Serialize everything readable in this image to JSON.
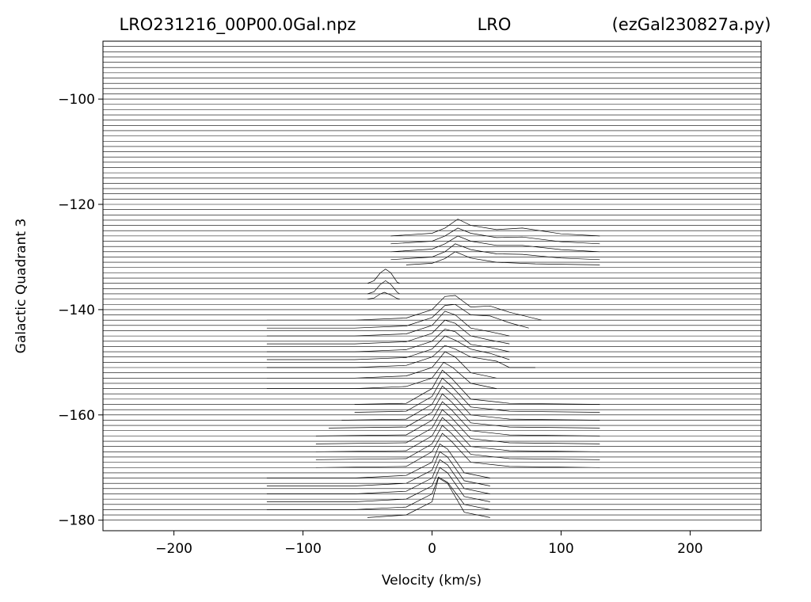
{
  "chart_data": {
    "type": "ridgeline",
    "title_left": "LRO231216_00P00.0Gal.npz",
    "title_center": "LRO",
    "title_right": "(ezGal230827a.py)",
    "xlabel": "Velocity (km/s)",
    "ylabel": "Galactic Quadrant 3",
    "xlim": [
      -255,
      255
    ],
    "ylim": [
      -182,
      -89
    ],
    "xticks": [
      {
        "value": -200,
        "label": "−200"
      },
      {
        "value": -100,
        "label": "−100"
      },
      0,
      100,
      200
    ],
    "yticks": [
      {
        "value": -180,
        "label": "−180"
      },
      {
        "value": -160,
        "label": "−160"
      },
      {
        "value": -140,
        "label": "−140"
      },
      {
        "value": -120,
        "label": "−120"
      },
      {
        "value": -100,
        "label": "−100"
      }
    ],
    "color": "#000000",
    "rows": [
      -90,
      -91,
      -92,
      -93,
      -94,
      -95,
      -96,
      -97,
      -98,
      -99,
      -100,
      -101,
      -102,
      -103,
      -104,
      -105,
      -106,
      -107,
      -108,
      -109,
      -110,
      -111,
      -112,
      -113,
      -114,
      -115,
      -116,
      -117,
      -118,
      -119,
      -120,
      -121,
      -122,
      -123,
      -124,
      -125,
      -126,
      -127,
      -128,
      -129,
      -130,
      -131,
      -132,
      -133,
      -134,
      -135,
      -136,
      -137,
      -138,
      -139,
      -140,
      -141,
      -142,
      -143,
      -144,
      -145,
      -146,
      -147,
      -148,
      -149,
      -150,
      -151,
      -152,
      -153,
      -154,
      -155,
      -156,
      -157,
      -158,
      -159,
      -160,
      -161,
      -162,
      -163,
      -164,
      -165,
      -166,
      -167,
      -168,
      -169,
      -170,
      -171,
      -172,
      -173,
      -174,
      -175,
      -176,
      -177,
      -178,
      -179,
      -180
    ],
    "series": [
      {
        "x": [
          -32,
          0,
          10,
          20,
          30,
          50,
          70,
          100,
          130
        ],
        "values": [
          -126,
          -125.5,
          -124.5,
          -122.8,
          -124,
          -124.8,
          -124.5,
          -125.6,
          -126
        ]
      },
      {
        "x": [
          -32,
          0,
          10,
          20,
          30,
          50,
          70,
          100,
          130
        ],
        "values": [
          -127.5,
          -127,
          -126,
          -124.5,
          -125.5,
          -126.3,
          -126.2,
          -127.1,
          -127.5
        ]
      },
      {
        "x": [
          -32,
          0,
          10,
          20,
          30,
          50,
          70,
          100,
          130
        ],
        "values": [
          -129,
          -128.5,
          -127.5,
          -126,
          -127,
          -127.8,
          -127.8,
          -128.6,
          -129
        ]
      },
      {
        "x": [
          -32,
          0,
          10,
          18,
          30,
          50,
          70,
          100,
          130
        ],
        "values": [
          -130.5,
          -130,
          -129,
          -127.5,
          -128.6,
          -129.4,
          -129.5,
          -130.2,
          -130.5
        ]
      },
      {
        "x": [
          -20,
          0,
          10,
          18,
          30,
          50,
          80,
          130
        ],
        "values": [
          -131.5,
          -131.2,
          -130.3,
          -129,
          -130.2,
          -131,
          -131.3,
          -131.5
        ]
      },
      {
        "x": [
          -50,
          -45,
          -40,
          -36,
          -32,
          -27,
          -25
        ],
        "values": [
          -135,
          -134.5,
          -133,
          -132.3,
          -133,
          -134.8,
          -135
        ]
      },
      {
        "x": [
          -50,
          -45,
          -40,
          -36,
          -32,
          -27,
          -25
        ],
        "values": [
          -137,
          -136.6,
          -135.2,
          -134.5,
          -135.2,
          -136.7,
          -137
        ]
      },
      {
        "x": [
          -50,
          -45,
          -40,
          -37,
          -32,
          -27,
          -25
        ],
        "values": [
          -138,
          -137.8,
          -137,
          -136.7,
          -137.2,
          -137.9,
          -138
        ]
      },
      {
        "x": [
          -128,
          -60,
          -20,
          0,
          10,
          18,
          30,
          45,
          60,
          85
        ],
        "values": [
          -142,
          -142,
          -141.6,
          -140,
          -137.5,
          -137.3,
          -139.5,
          -139.3,
          -140.5,
          -142
        ]
      },
      {
        "x": [
          -128,
          -60,
          -20,
          0,
          10,
          18,
          30,
          45,
          60,
          75
        ],
        "values": [
          -143.5,
          -143.5,
          -143.1,
          -141.5,
          -139.2,
          -139,
          -141,
          -141.2,
          -142.5,
          -143.5
        ]
      },
      {
        "x": [
          -128,
          -60,
          -20,
          0,
          10,
          18,
          30,
          45,
          60
        ],
        "values": [
          -145,
          -145,
          -144.6,
          -143,
          -140.3,
          -141,
          -143.5,
          -144.2,
          -145
        ]
      },
      {
        "x": [
          -128,
          -60,
          -20,
          0,
          10,
          18,
          30,
          45,
          60
        ],
        "values": [
          -146.5,
          -146.5,
          -146.1,
          -144.5,
          -142,
          -142.6,
          -145,
          -145.8,
          -146.5
        ]
      },
      {
        "x": [
          -128,
          -60,
          -20,
          0,
          10,
          18,
          30,
          45,
          60
        ],
        "values": [
          -148,
          -148,
          -147.6,
          -146,
          -143.7,
          -144.2,
          -146.6,
          -147.2,
          -148
        ]
      },
      {
        "x": [
          -128,
          -60,
          -20,
          0,
          10,
          18,
          30,
          45,
          60
        ],
        "values": [
          -149.5,
          -149.5,
          -149.1,
          -147.5,
          -145,
          -145.8,
          -147.5,
          -148.3,
          -149.5
        ]
      },
      {
        "x": [
          -128,
          -60,
          -20,
          0,
          10,
          18,
          30,
          50,
          60,
          80
        ],
        "values": [
          -151,
          -151,
          -150.6,
          -149,
          -146.8,
          -147.5,
          -149,
          -149.8,
          -151,
          -151
        ]
      },
      {
        "x": [
          -128,
          -60,
          -20,
          0,
          10,
          18,
          30,
          50
        ],
        "values": [
          -153,
          -153,
          -152.6,
          -151,
          -148,
          -149,
          -152,
          -153
        ]
      },
      {
        "x": [
          -128,
          -60,
          -20,
          0,
          9,
          16,
          30,
          50
        ],
        "values": [
          -155,
          -155,
          -154.6,
          -153,
          -150,
          -151,
          -154,
          -155
        ]
      },
      {
        "x": [
          -60,
          -20,
          0,
          8,
          15,
          30,
          60,
          130
        ],
        "values": [
          -158,
          -157.8,
          -155,
          -151.5,
          -153,
          -157,
          -157.8,
          -158
        ]
      },
      {
        "x": [
          -60,
          -20,
          0,
          8,
          15,
          30,
          60,
          130
        ],
        "values": [
          -159.5,
          -159.3,
          -156.5,
          -153,
          -154.5,
          -158.5,
          -159.3,
          -159.5
        ]
      },
      {
        "x": [
          -70,
          -20,
          0,
          8,
          15,
          30,
          60,
          130
        ],
        "values": [
          -161,
          -160.8,
          -158,
          -154.5,
          -156,
          -160,
          -160.8,
          -161
        ]
      },
      {
        "x": [
          -80,
          -20,
          0,
          8,
          15,
          30,
          60,
          130
        ],
        "values": [
          -162.5,
          -162.3,
          -159.5,
          -156,
          -157.5,
          -161.5,
          -162.3,
          -162.5
        ]
      },
      {
        "x": [
          -90,
          -20,
          0,
          8,
          15,
          30,
          60,
          130
        ],
        "values": [
          -164,
          -163.8,
          -161,
          -157.5,
          -159,
          -163,
          -163.8,
          -164
        ]
      },
      {
        "x": [
          -90,
          -20,
          0,
          8,
          15,
          30,
          60,
          130
        ],
        "values": [
          -165.5,
          -165.3,
          -162.5,
          -159,
          -160.5,
          -164.5,
          -165.3,
          -165.5
        ]
      },
      {
        "x": [
          -90,
          -20,
          0,
          8,
          15,
          30,
          60,
          130
        ],
        "values": [
          -167,
          -166.8,
          -164,
          -160.5,
          -162,
          -166,
          -166.8,
          -167
        ]
      },
      {
        "x": [
          -90,
          -20,
          0,
          8,
          15,
          30,
          60,
          130
        ],
        "values": [
          -168.5,
          -168.3,
          -165.5,
          -162,
          -163.5,
          -167.5,
          -168.3,
          -168.5
        ]
      },
      {
        "x": [
          -90,
          -20,
          0,
          8,
          15,
          30,
          60,
          130
        ],
        "values": [
          -170,
          -169.8,
          -167,
          -163.5,
          -165,
          -169,
          -169.8,
          -170
        ]
      },
      {
        "x": [
          -128,
          -60,
          -20,
          0,
          6,
          12,
          25,
          45
        ],
        "values": [
          -172,
          -172,
          -171.5,
          -169,
          -165.5,
          -166.5,
          -171,
          -172
        ]
      },
      {
        "x": [
          -128,
          -60,
          -20,
          0,
          6,
          12,
          25,
          45
        ],
        "values": [
          -173.5,
          -173.5,
          -173,
          -170.5,
          -167,
          -168,
          -172.5,
          -173.5
        ]
      },
      {
        "x": [
          -128,
          -60,
          -20,
          0,
          6,
          12,
          25,
          45
        ],
        "values": [
          -175,
          -175,
          -174.5,
          -172,
          -168.5,
          -169.5,
          -174,
          -175
        ]
      },
      {
        "x": [
          -128,
          -60,
          -20,
          0,
          6,
          12,
          25,
          45
        ],
        "values": [
          -176.5,
          -176.5,
          -176,
          -173.5,
          -170,
          -171,
          -175.5,
          -176.5
        ]
      },
      {
        "x": [
          -128,
          -60,
          -20,
          0,
          5,
          12,
          25,
          45
        ],
        "values": [
          -178,
          -178,
          -177.5,
          -175,
          -171.8,
          -172.8,
          -177,
          -178
        ]
      },
      {
        "x": [
          -50,
          -20,
          0,
          5,
          12,
          25,
          45
        ],
        "values": [
          -179.5,
          -179,
          -176.5,
          -172,
          -173,
          -178.5,
          -179.5
        ]
      }
    ]
  }
}
